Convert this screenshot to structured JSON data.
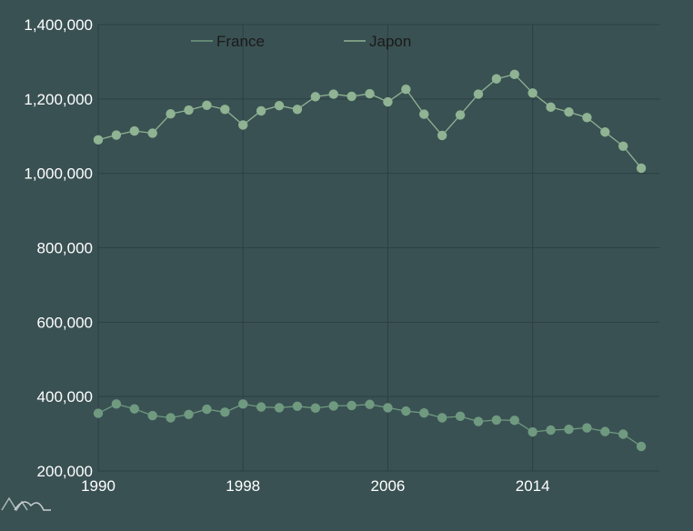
{
  "colors": {
    "background": "#3a5153",
    "grid": "#2c4042",
    "tick_text": "#ffffff",
    "legend_text": "#1a1a1a",
    "france": "#6f9a80",
    "japon": "#8fb393"
  },
  "chart_data": {
    "type": "line",
    "title": "",
    "xlabel": "",
    "ylabel": "",
    "xlim": [
      1990,
      2021
    ],
    "ylim": [
      200000,
      1400000
    ],
    "grid": true,
    "legend_position": "top",
    "y_ticks": [
      {
        "value": 200000,
        "label": "200,000"
      },
      {
        "value": 400000,
        "label": "400,000"
      },
      {
        "value": 600000,
        "label": "600,000"
      },
      {
        "value": 800000,
        "label": "800,000"
      },
      {
        "value": 1000000,
        "label": "1,000,000"
      },
      {
        "value": 1200000,
        "label": "1,200,000"
      },
      {
        "value": 1400000,
        "label": "1,400,000"
      }
    ],
    "x_ticks": [
      {
        "value": 1990,
        "label": "1990"
      },
      {
        "value": 1998,
        "label": "1998"
      },
      {
        "value": 2006,
        "label": "2006"
      },
      {
        "value": 2014,
        "label": "2014"
      }
    ],
    "x": [
      1990,
      1991,
      1992,
      1993,
      1994,
      1995,
      1996,
      1997,
      1998,
      1999,
      2000,
      2001,
      2002,
      2003,
      2004,
      2005,
      2006,
      2007,
      2008,
      2009,
      2010,
      2011,
      2012,
      2013,
      2014,
      2015,
      2016,
      2017,
      2018,
      2019,
      2020
    ],
    "series": [
      {
        "name": "France",
        "color_key": "france",
        "values": [
          355000,
          380000,
          367000,
          349000,
          343000,
          352000,
          366000,
          358000,
          380000,
          372000,
          370000,
          374000,
          369000,
          375000,
          376000,
          379000,
          370000,
          361000,
          356000,
          343000,
          347000,
          333000,
          337000,
          336000,
          305000,
          310000,
          312000,
          316000,
          306000,
          299000,
          266000
        ]
      },
      {
        "name": "Japon",
        "color_key": "japon",
        "values": [
          1090000,
          1103000,
          1114000,
          1108000,
          1160000,
          1170000,
          1183000,
          1172000,
          1130000,
          1168000,
          1182000,
          1172000,
          1206000,
          1213000,
          1207000,
          1214000,
          1192000,
          1226000,
          1159000,
          1102000,
          1157000,
          1213000,
          1254000,
          1266000,
          1216000,
          1178000,
          1165000,
          1150000,
          1111000,
          1073000,
          1014000
        ]
      }
    ]
  }
}
